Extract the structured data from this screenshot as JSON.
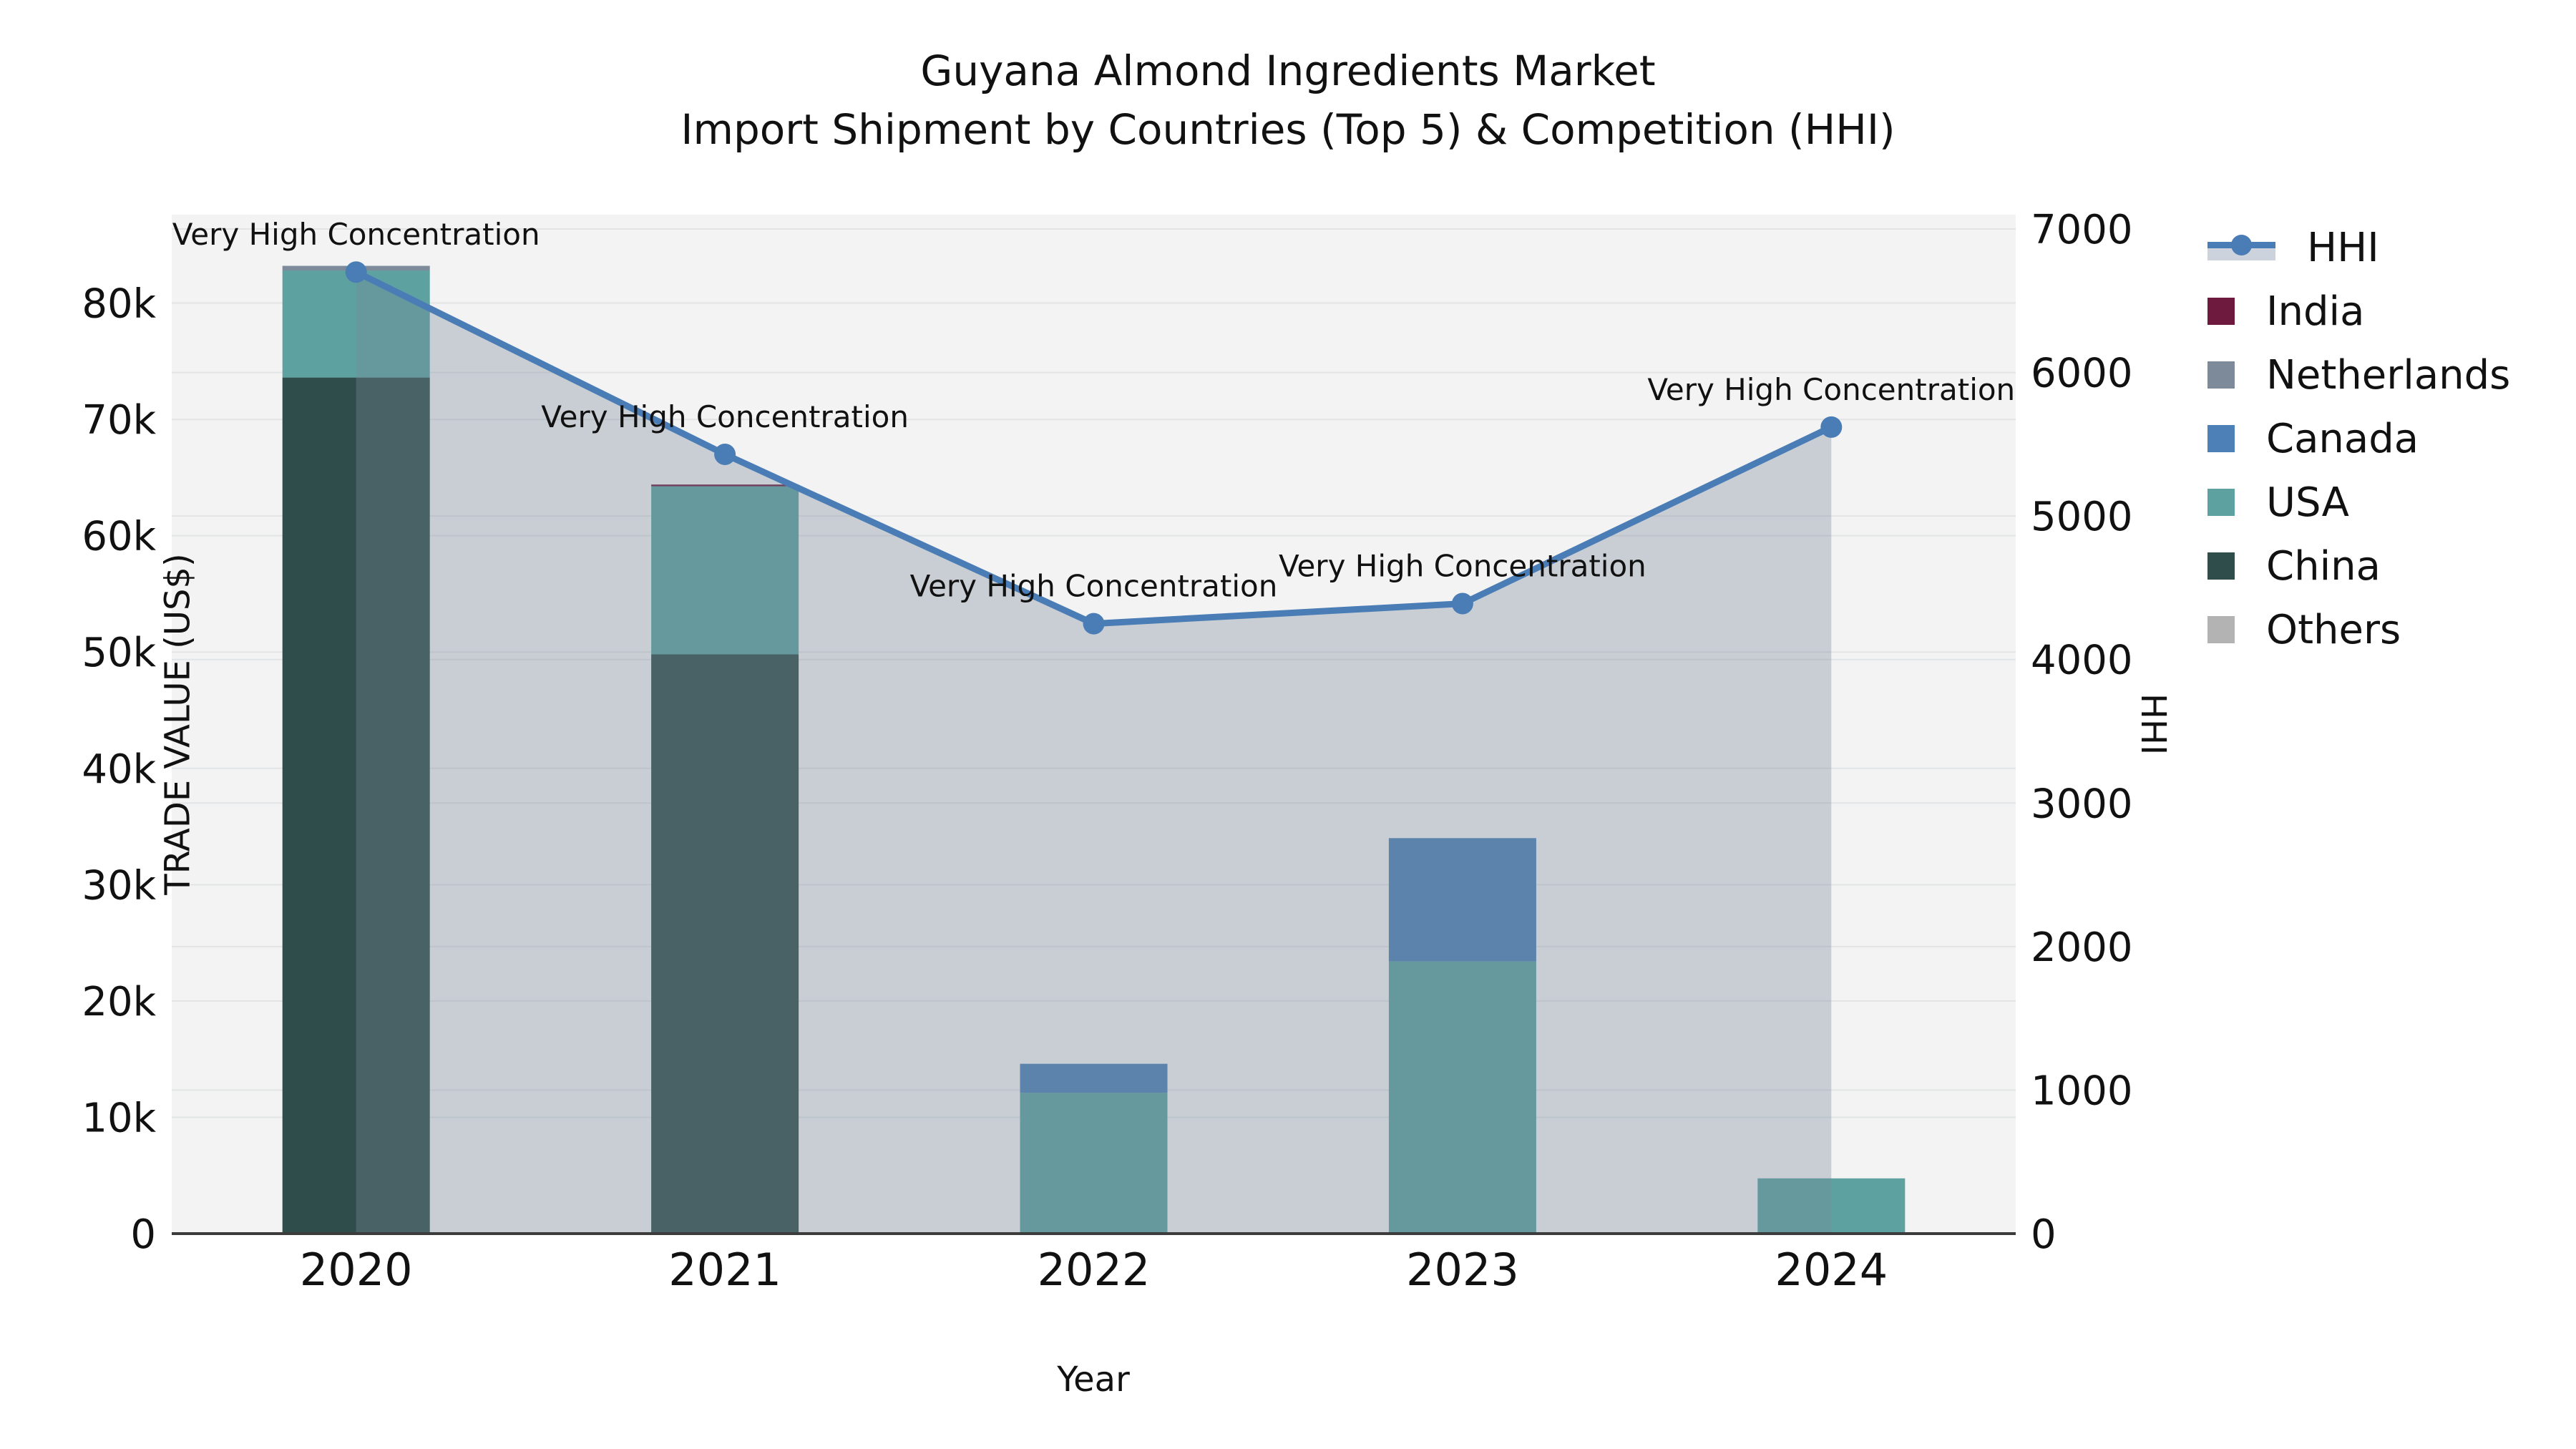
{
  "title": {
    "line1": "Guyana Almond Ingredients Market",
    "line2": "Import Shipment by Countries (Top 5) & Competition (HHI)"
  },
  "axis_titles": {
    "x": "Year",
    "y_left": "TRADE VALUE (US$)",
    "y_right": "HHI"
  },
  "legend": [
    {
      "label": "HHI",
      "type": "line",
      "color": "#4a7cb5"
    },
    {
      "label": "India",
      "type": "bar",
      "color": "#6d1a3e"
    },
    {
      "label": "Netherlands",
      "type": "bar",
      "color": "#7d8a9a"
    },
    {
      "label": "Canada",
      "type": "bar",
      "color": "#4d80b6"
    },
    {
      "label": "USA",
      "type": "bar",
      "color": "#5da1a1"
    },
    {
      "label": "China",
      "type": "bar",
      "color": "#2f4d4b"
    },
    {
      "label": "Others",
      "type": "bar",
      "color": "#b3b3b3"
    }
  ],
  "chart_data": {
    "type": "bar+line",
    "categories": [
      "2020",
      "2021",
      "2022",
      "2023",
      "2024"
    ],
    "bar_value_unit": "US$",
    "stack_order_bottom_to_top": [
      "China",
      "USA",
      "Canada",
      "Netherlands",
      "India",
      "Others"
    ],
    "series": [
      {
        "name": "India",
        "type": "bar",
        "axis": "left",
        "color": "#6d1a3e",
        "values": [
          0,
          150,
          0,
          0,
          0
        ]
      },
      {
        "name": "Netherlands",
        "type": "bar",
        "axis": "left",
        "color": "#7d8a9a",
        "values": [
          400,
          0,
          0,
          0,
          0
        ]
      },
      {
        "name": "Canada",
        "type": "bar",
        "axis": "left",
        "color": "#4d80b6",
        "values": [
          0,
          0,
          2500,
          10600,
          0
        ]
      },
      {
        "name": "USA",
        "type": "bar",
        "axis": "left",
        "color": "#5da1a1",
        "values": [
          9200,
          14450,
          12100,
          23400,
          4750
        ]
      },
      {
        "name": "China",
        "type": "bar",
        "axis": "left",
        "color": "#2f4d4b",
        "values": [
          73600,
          49800,
          0,
          0,
          0
        ]
      },
      {
        "name": "Others",
        "type": "bar",
        "axis": "left",
        "color": "#b3b3b3",
        "values": [
          0,
          0,
          0,
          0,
          0
        ]
      },
      {
        "name": "HHI",
        "type": "line",
        "axis": "right",
        "color": "#4a7cb5",
        "area_fill": "rgba(121,137,152,0.35)",
        "values": [
          6700,
          5430,
          4250,
          4390,
          5620
        ]
      }
    ],
    "bar_totals": [
      83200,
      64400,
      14600,
      34000,
      4750
    ],
    "y_left": {
      "label": "TRADE VALUE (US$)",
      "tick_values": [
        0,
        10000,
        20000,
        30000,
        40000,
        50000,
        60000,
        70000,
        80000
      ],
      "tick_labels": [
        "0",
        "10k",
        "20k",
        "30k",
        "40k",
        "50k",
        "60k",
        "70k",
        "80k"
      ],
      "range": [
        0,
        87600
      ]
    },
    "y_right": {
      "label": "HHI",
      "tick_values": [
        0,
        1000,
        2000,
        3000,
        4000,
        5000,
        6000,
        7000
      ],
      "tick_labels": [
        "0",
        "1000",
        "2000",
        "3000",
        "4000",
        "5000",
        "6000",
        "7000"
      ],
      "range": [
        0,
        7100
      ]
    },
    "annotations": [
      {
        "category": "2020",
        "text": "Very High Concentration"
      },
      {
        "category": "2021",
        "text": "Very High Concentration"
      },
      {
        "category": "2022",
        "text": "Very High Concentration"
      },
      {
        "category": "2023",
        "text": "Very High Concentration"
      },
      {
        "category": "2024",
        "text": "Very High Concentration"
      }
    ],
    "grid": true,
    "legend_position": "right-outside",
    "plot_background": "#f3f3f3",
    "gridline_color": "#e2e4e6",
    "axis_line_color": "#3c3c3c"
  }
}
